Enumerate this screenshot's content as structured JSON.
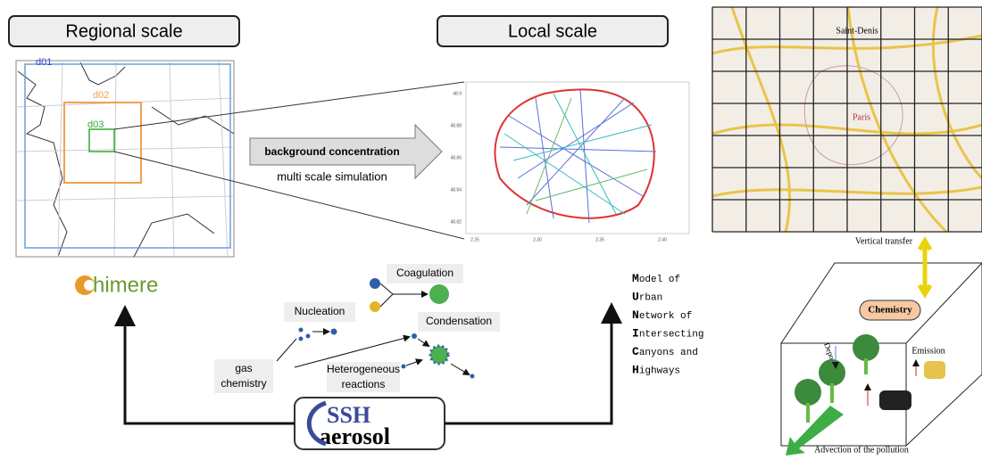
{
  "headers": {
    "regional": "Regional scale",
    "local": "Local scale"
  },
  "regional_map": {
    "domains": [
      "d01",
      "d02",
      "d03"
    ]
  },
  "arrow": {
    "label": "background concentration",
    "caption": "multi scale simulation"
  },
  "local_plot": {
    "yticks": [
      "48.9",
      "48.88",
      "48.86",
      "48.84",
      "48.82"
    ],
    "xticks": [
      "2.25",
      "2.30",
      "2.35",
      "2.40"
    ]
  },
  "street_map": {
    "places": [
      "Saint-Denis",
      "Paris"
    ]
  },
  "chimere": {
    "label": "himere"
  },
  "ssh": {
    "line1": "SSH",
    "line2": "aerosol"
  },
  "processes": {
    "coagulation": "Coagulation",
    "nucleation": "Nucleation",
    "condensation": "Condensation",
    "gas_chemistry": [
      "gas",
      "chemistry"
    ],
    "heterogeneous": [
      "Heterogeneous",
      "reactions"
    ]
  },
  "munich": {
    "lines": [
      [
        "M",
        "odel of"
      ],
      [
        "U",
        "rban"
      ],
      [
        "N",
        "etwork of"
      ],
      [
        "I",
        "ntersecting"
      ],
      [
        "C",
        "anyons and"
      ],
      [
        "H",
        "ighways"
      ]
    ]
  },
  "box_model": {
    "vertical": "Vertical transfer",
    "chemistry": "Chemistry",
    "deposition": "Deposition",
    "emission": "Emission",
    "advection": "Advection of the pollution"
  }
}
